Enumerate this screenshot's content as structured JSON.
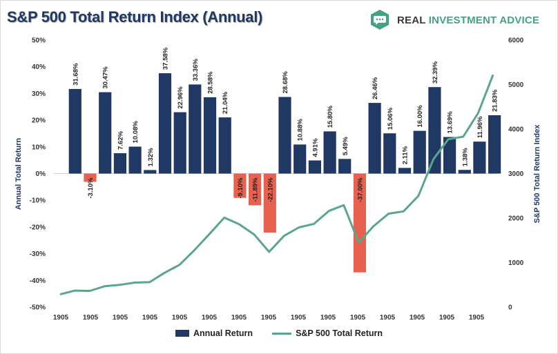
{
  "header": {
    "title": "S&P 500 Total Return Index (Annual)",
    "brand_part1": "REAL ",
    "brand_part2": "INVESTMENT ADVICE",
    "brand_icon": "speech-bubble-ellipsis-icon",
    "brand_color": "#43a284"
  },
  "chart_data": {
    "type": "bar",
    "title": "S&P 500 Total Return Index (Annual)",
    "ylabel": "Annual Total Return",
    "y2label": "S&P 500 Total Return Index",
    "ylim": [
      -50,
      50
    ],
    "y2lim": [
      0,
      6000
    ],
    "y_ticks": [
      "50%",
      "40%",
      "30%",
      "20%",
      "10%",
      "0%",
      "-10%",
      "-20%",
      "-30%",
      "-40%",
      "-50%"
    ],
    "y2_ticks": [
      "6000",
      "5000",
      "4000",
      "3000",
      "2000",
      "1000",
      "0"
    ],
    "x_tick_labels": [
      "1905",
      "1905",
      "1905",
      "1905",
      "1905",
      "1905",
      "1905",
      "1905",
      "1905",
      "1905",
      "1905",
      "1905",
      "1905",
      "1905",
      "1905"
    ],
    "series": [
      {
        "name": "Annual Return",
        "color": "#203864",
        "negative_color": "#e8614e",
        "values": [
          31.68,
          -3.1,
          30.47,
          7.62,
          10.08,
          1.32,
          37.58,
          22.96,
          33.36,
          28.58,
          21.04,
          -9.1,
          -11.89,
          -22.1,
          28.68,
          10.88,
          4.91,
          15.8,
          5.49,
          -37.0,
          26.46,
          15.06,
          2.11,
          16.0,
          32.39,
          13.69,
          1.38,
          11.96,
          21.83
        ],
        "labels": [
          "31.68%",
          "-3.10%",
          "30.47%",
          "7.62%",
          "10.08%",
          "1.32%",
          "37.58%",
          "22.96%",
          "33.36%",
          "28.58%",
          "21.04%",
          "-9.10%",
          "-11.89%",
          "-22.10%",
          "28.68%",
          "10.88%",
          "4.91%",
          "15.80%",
          "5.49%",
          "-37.00%",
          "26.46%",
          "15.06%",
          "2.11%",
          "16.00%",
          "32.39%",
          "13.69%",
          "1.38%",
          "11.96%",
          "21.83%"
        ]
      },
      {
        "name": "S&P 500 Total Return",
        "color": "#5aa68a",
        "axis": "secondary",
        "values": [
          285,
          370,
          365,
          470,
          500,
          550,
          560,
          770,
          950,
          1280,
          1640,
          2010,
          1860,
          1630,
          1240,
          1600,
          1790,
          1870,
          2160,
          2290,
          1450,
          1820,
          2100,
          2150,
          2500,
          3320,
          3770,
          3830,
          4360,
          5220
        ]
      }
    ],
    "legend": [
      "Annual Return",
      "S&P 500 Total Return"
    ],
    "legend_position": "bottom"
  }
}
